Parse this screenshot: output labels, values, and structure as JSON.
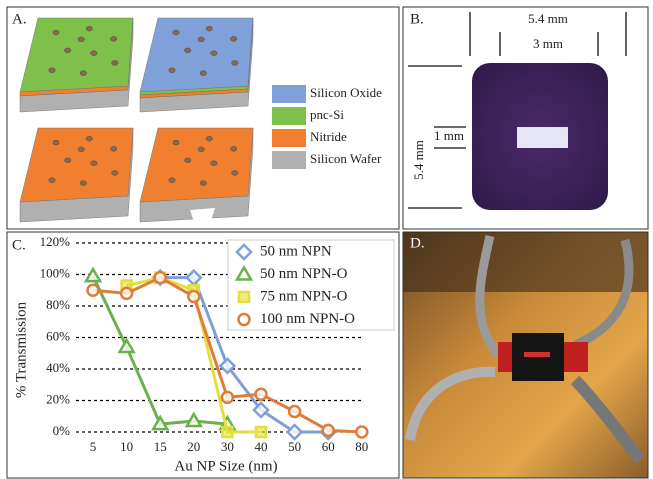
{
  "panel_a": {
    "label": "A.",
    "legend": [
      "Silicon Oxide",
      "pnc-Si",
      "Nitride",
      "Silicon Wafer"
    ]
  },
  "panel_b": {
    "label": "B.",
    "outer_width": "5.4 mm",
    "inner_width": "3 mm",
    "window": "1 mm",
    "outer_height": "5.4 mm"
  },
  "chart_data": {
    "type": "line",
    "panel_label": "C.",
    "x_label": "Au NP Size (nm)",
    "y_label": "% Transmission",
    "categories": [
      "5",
      "10",
      "15",
      "20",
      "30",
      "40",
      "50",
      "60",
      "80"
    ],
    "series": [
      {
        "name": "50 nm NPN",
        "color": "#7f9fd8",
        "marker": "diamond",
        "values": [
          null,
          null,
          98,
          98,
          42,
          14,
          0,
          0,
          null
        ]
      },
      {
        "name": "50 nm NPN-O",
        "color": "#6ab04c",
        "marker": "triangle",
        "values": [
          99,
          54,
          5,
          7,
          5,
          null,
          null,
          null,
          null
        ]
      },
      {
        "name": "75 nm NPN-O",
        "color": "#e3df3a",
        "marker": "square",
        "values": [
          null,
          93,
          98,
          90,
          0,
          0,
          null,
          null,
          null
        ]
      },
      {
        "name": "100 nm NPN-O",
        "color": "#e07b39",
        "marker": "circle",
        "values": [
          90,
          88,
          98,
          86,
          22,
          24,
          13,
          1,
          0
        ]
      }
    ],
    "ylim": [
      0,
      120
    ],
    "yticks": [
      {
        "value": 0,
        "label": "0%"
      },
      {
        "value": 20,
        "label": "20%"
      },
      {
        "value": 40,
        "label": "40%"
      },
      {
        "value": 60,
        "label": "60%"
      },
      {
        "value": 80,
        "label": "80%"
      },
      {
        "value": 100,
        "label": "100%"
      },
      {
        "value": 120,
        "label": "120%"
      }
    ],
    "grid": true
  },
  "panel_d": {
    "label": "D."
  }
}
